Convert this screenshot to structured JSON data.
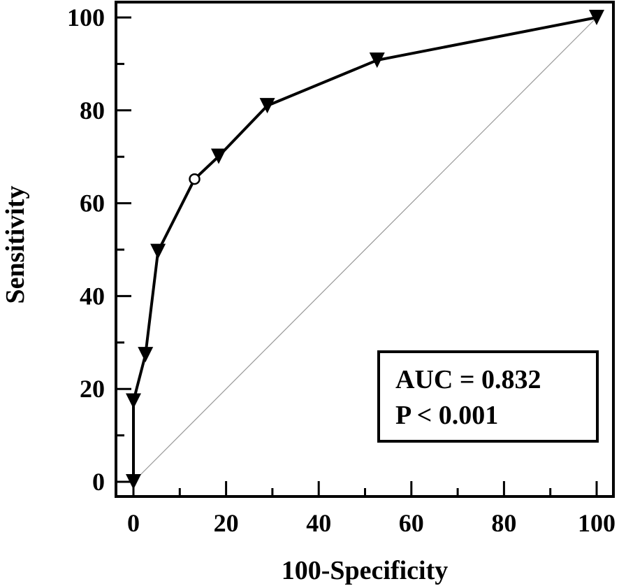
{
  "chart_data": {
    "type": "line",
    "xlabel": "100-Specificity",
    "ylabel": "Sensitivity",
    "xlim": [
      0,
      100
    ],
    "ylim": [
      0,
      100
    ],
    "xticks": [
      "0",
      "20",
      "40",
      "60",
      "80",
      "100"
    ],
    "yticks": [
      "0",
      "20",
      "40",
      "60",
      "80",
      "100"
    ],
    "grid": false,
    "series": [
      {
        "marker": "triangle-down",
        "color": "#000000",
        "x": [
          0,
          0,
          2.6,
          5.3,
          13.2,
          18.4,
          28.9,
          52.6,
          100
        ],
        "y": [
          0,
          17.4,
          27.4,
          49.6,
          65.2,
          70.1,
          81.0,
          90.8,
          100
        ]
      }
    ],
    "highlight_point": {
      "x": 13.2,
      "y": 65.2,
      "marker": "open-circle"
    },
    "reference_line": {
      "x": [
        0,
        100
      ],
      "y": [
        0,
        100
      ],
      "color": "#999999"
    },
    "annotation": {
      "lines": [
        "AUC = 0.832",
        "P < 0.001"
      ],
      "placement": "bottom-right"
    }
  }
}
